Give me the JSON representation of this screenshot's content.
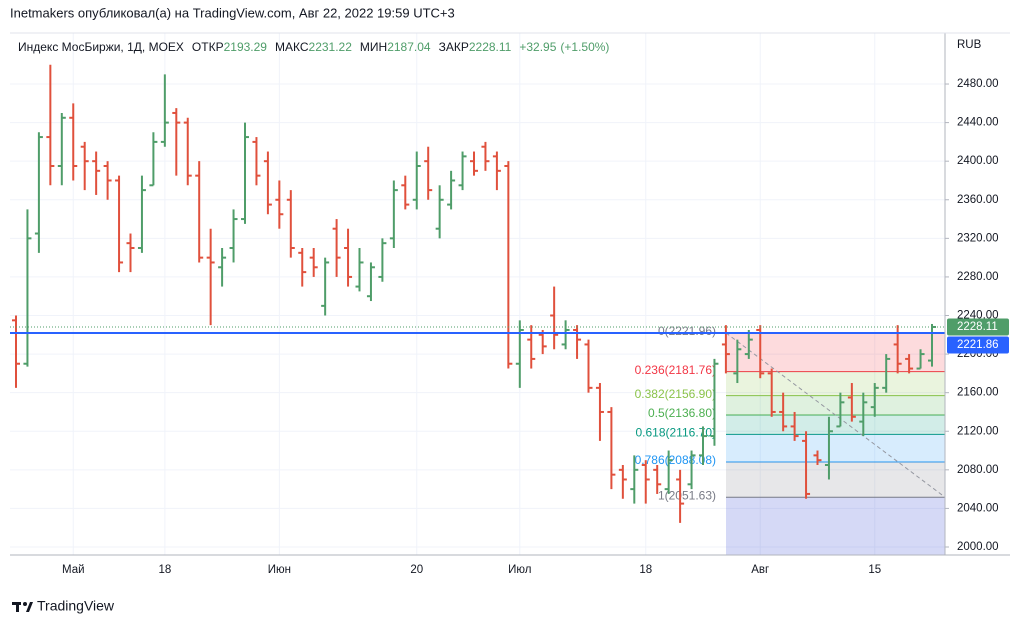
{
  "header": {
    "text": "Inetmakers опубликовал(а) на TradingView.com, Авг 22, 2022 19:59 UTC+3"
  },
  "footer": {
    "brand": "TradingView"
  },
  "chart_data": {
    "type": "ohlc",
    "title": "Индекс МосБиржи, 1Д, MOEX",
    "legend_labels": [
      "ОТКР",
      "МАКС",
      "МИН",
      "ЗАКР"
    ],
    "change": {
      "value": 32.95,
      "label": "+32.95"
    },
    "change_percent": {
      "value": 1.5,
      "label": "(+1.50%)"
    },
    "currency": "RUB",
    "up_color": "#4f9d69",
    "down_color": "#e0503c",
    "categories": [
      null,
      null,
      null,
      null,
      null,
      "Май",
      null,
      null,
      null,
      null,
      null,
      null,
      null,
      "18",
      null,
      null,
      null,
      null,
      null,
      null,
      null,
      null,
      null,
      "Июн",
      null,
      null,
      null,
      null,
      null,
      null,
      null,
      null,
      null,
      null,
      null,
      "20",
      null,
      null,
      null,
      null,
      null,
      null,
      null,
      null,
      "Июл",
      null,
      null,
      null,
      null,
      null,
      null,
      null,
      null,
      null,
      null,
      "18",
      null,
      null,
      null,
      null,
      null,
      null,
      null,
      null,
      null,
      "Авг",
      null,
      null,
      null,
      null,
      null,
      null,
      null,
      null,
      null,
      "15",
      null,
      null,
      null,
      null,
      null
    ],
    "open": [
      2235,
      2190,
      2325,
      2425,
      2395,
      2445,
      2415,
      2400,
      2395,
      2380,
      2315,
      2310,
      2375,
      2420,
      2450,
      2440,
      2385,
      2300,
      2290,
      2310,
      2340,
      2420,
      2400,
      2360,
      2360,
      2305,
      2300,
      2250,
      2330,
      2310,
      2270,
      2260,
      2280,
      2320,
      2375,
      2360,
      2400,
      2330,
      2355,
      2375,
      2400,
      2415,
      2405,
      2395,
      2190,
      2215,
      2220,
      2240,
      2210,
      2225,
      2210,
      2165,
      2140,
      2080,
      2060,
      2085,
      2080,
      2060,
      2070,
      2065,
      2095,
      2115,
      2210,
      2180,
      2200,
      2225,
      2180,
      2140,
      2125,
      2110,
      2095,
      2085,
      2125,
      2155,
      2130,
      2145,
      2165,
      2210,
      2195,
      2185,
      2193.29
    ],
    "high": [
      2240,
      2350,
      2430,
      2500,
      2450,
      2460,
      2420,
      2410,
      2400,
      2385,
      2325,
      2385,
      2430,
      2490,
      2455,
      2445,
      2400,
      2330,
      2310,
      2350,
      2440,
      2425,
      2410,
      2380,
      2370,
      2310,
      2310,
      2300,
      2340,
      2330,
      2310,
      2295,
      2320,
      2380,
      2385,
      2410,
      2415,
      2375,
      2390,
      2410,
      2410,
      2420,
      2410,
      2400,
      2235,
      2230,
      2225,
      2270,
      2235,
      2230,
      2215,
      2170,
      2145,
      2085,
      2095,
      2090,
      2085,
      2100,
      2080,
      2100,
      2125,
      2195,
      2230,
      2215,
      2225,
      2230,
      2185,
      2160,
      2140,
      2120,
      2100,
      2135,
      2160,
      2170,
      2160,
      2170,
      2200,
      2230,
      2200,
      2205,
      2231.22
    ],
    "low": [
      2165,
      2187,
      2305,
      2375,
      2375,
      2380,
      2370,
      2365,
      2360,
      2285,
      2285,
      2305,
      2375,
      2415,
      2385,
      2375,
      2295,
      2230,
      2270,
      2295,
      2335,
      2375,
      2345,
      2330,
      2300,
      2270,
      2280,
      2240,
      2280,
      2270,
      2265,
      2255,
      2275,
      2310,
      2350,
      2350,
      2360,
      2320,
      2350,
      2370,
      2385,
      2390,
      2370,
      2185,
      2165,
      2185,
      2200,
      2205,
      2205,
      2195,
      2160,
      2110,
      2060,
      2050,
      2045,
      2045,
      2055,
      2055,
      2025,
      2060,
      2085,
      2105,
      2180,
      2170,
      2195,
      2175,
      2135,
      2120,
      2110,
      2050,
      2085,
      2070,
      2125,
      2130,
      2115,
      2135,
      2160,
      2180,
      2180,
      2185,
      2187.04
    ],
    "close": [
      2190,
      2320,
      2425,
      2395,
      2445,
      2395,
      2400,
      2390,
      2380,
      2295,
      2310,
      2370,
      2420,
      2440,
      2440,
      2385,
      2300,
      2295,
      2300,
      2340,
      2425,
      2385,
      2355,
      2345,
      2310,
      2285,
      2290,
      2295,
      2300,
      2280,
      2295,
      2290,
      2315,
      2370,
      2355,
      2395,
      2370,
      2360,
      2380,
      2405,
      2390,
      2400,
      2390,
      2190,
      2225,
      2195,
      2208,
      2220,
      2225,
      2215,
      2165,
      2140,
      2075,
      2070,
      2080,
      2070,
      2065,
      2090,
      2045,
      2095,
      2115,
      2190,
      2200,
      2205,
      2215,
      2180,
      2140,
      2125,
      2115,
      2055,
      2090,
      2120,
      2150,
      2135,
      2150,
      2165,
      2195,
      2190,
      2185,
      2200,
      2228.11
    ],
    "ylim": [
      1991.7,
      2532.9
    ],
    "yticks": [
      {
        "value": 2000,
        "label": "2000.00"
      },
      {
        "value": 2040,
        "label": "2040.00"
      },
      {
        "value": 2080,
        "label": "2080.00"
      },
      {
        "value": 2120,
        "label": "2120.00"
      },
      {
        "value": 2160,
        "label": "2160.00"
      },
      {
        "value": 2200,
        "label": "2200.00"
      },
      {
        "value": 2240,
        "label": "2240.00"
      },
      {
        "value": 2280,
        "label": "2280.00"
      },
      {
        "value": 2320,
        "label": "2320.00"
      },
      {
        "value": 2360,
        "label": "2360.00"
      },
      {
        "value": 2400,
        "label": "2400.00"
      },
      {
        "value": 2440,
        "label": "2440.00"
      },
      {
        "value": 2480,
        "label": "2480.00"
      }
    ],
    "grid": true,
    "hline": {
      "value": 2221.86,
      "color": "#2962ff"
    },
    "fib": {
      "levels": [
        {
          "value": 2221.96,
          "label": "0(2221.96)",
          "color": "#787b86"
        },
        {
          "value": 2181.76,
          "label": "0.236(2181.76)",
          "color": "#f23645"
        },
        {
          "value": 2156.9,
          "label": "0.382(2156.90)",
          "color": "#8bc34a"
        },
        {
          "value": 2136.8,
          "label": "0.5(2136.80)",
          "color": "#4caf50"
        },
        {
          "value": 2116.7,
          "label": "0.618(2116.70)",
          "color": "#089981"
        },
        {
          "value": 2088.08,
          "label": "0.786(2088.08)",
          "color": "#2196f3"
        },
        {
          "value": 2051.63,
          "label": "1(2051.63)",
          "color": "#787b86"
        }
      ],
      "below_color": "#3f51d5"
    }
  }
}
